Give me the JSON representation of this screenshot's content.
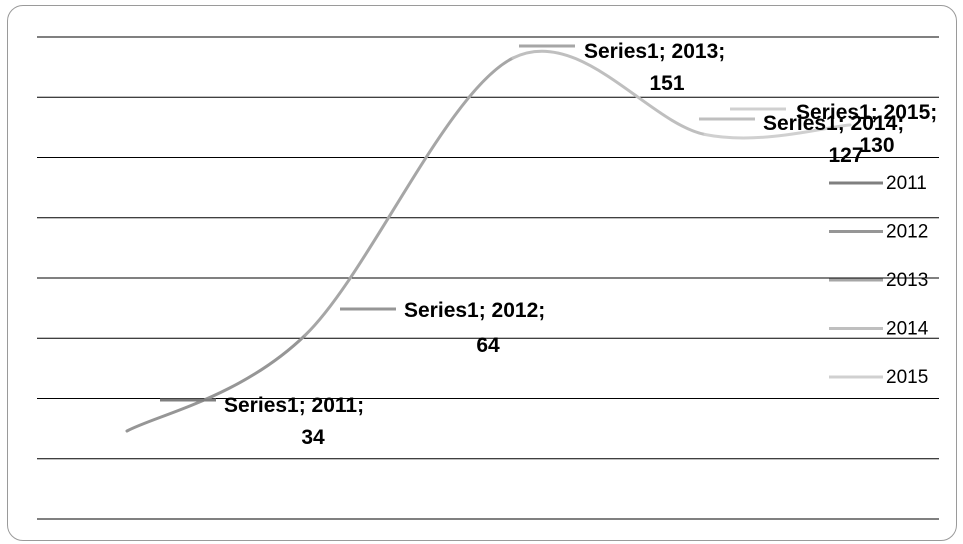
{
  "chart_data": {
    "type": "line",
    "smooth": true,
    "categories": [
      "2011",
      "2012",
      "2013",
      "2014",
      "2015"
    ],
    "series": [
      {
        "name": "Series1",
        "values": [
          34,
          64,
          151,
          127,
          130
        ]
      }
    ],
    "data_labels": [
      [
        "Series1; 2011;",
        "34"
      ],
      [
        "Series1; 2012;",
        "64"
      ],
      [
        "Series1; 2013;",
        "151"
      ],
      [
        "Series1; 2014;",
        "127"
      ],
      [
        "Series1; 2015;",
        "130"
      ]
    ],
    "legend": [
      "2011",
      "2012",
      "2013",
      "2014",
      "2015"
    ],
    "legend_position": "right",
    "ylim": [
      0,
      160
    ],
    "grid": true,
    "point_colors": [
      "#7f7f7f",
      "#969696",
      "#a6a6a6",
      "#bfbfbf",
      "#d0d0d0"
    ]
  }
}
